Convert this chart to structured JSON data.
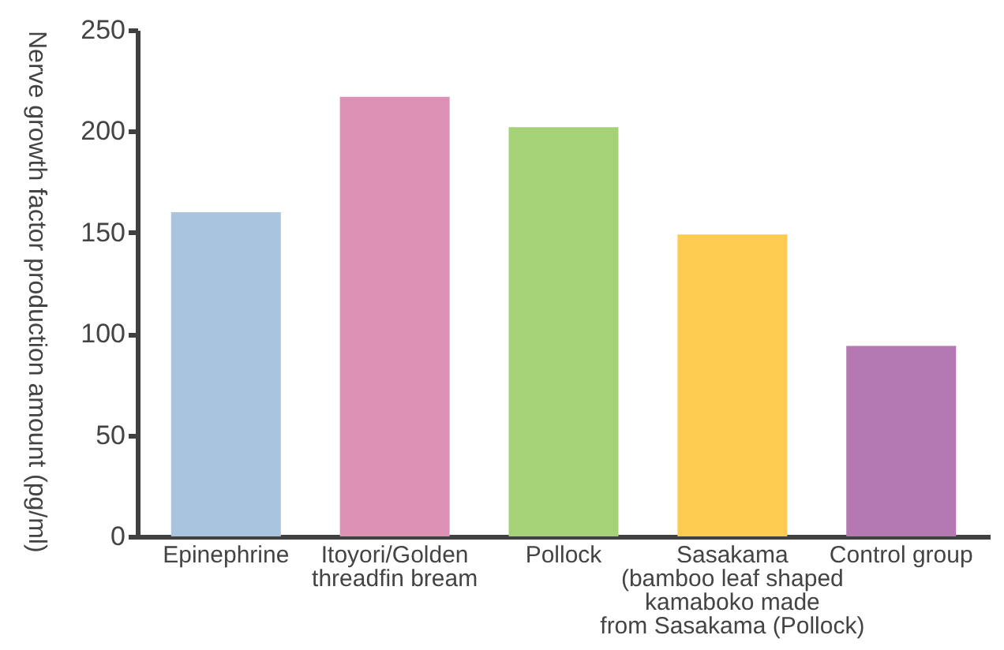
{
  "chart_data": {
    "type": "bar",
    "ylabel": "Nerve growth factor production amount (pg/ml)",
    "categories": [
      "Epinephrine",
      "Itoyori/Golden\nthreadfin bream",
      "Pollock",
      "Sasakama\n(bamboo leaf shaped\nkamaboko made\nfrom Sasakama (Pollock)",
      "Control group"
    ],
    "values": [
      160,
      217,
      202,
      149,
      94
    ],
    "colors": [
      "#a9c4de",
      "#dc91b5",
      "#a5d177",
      "#fccb50",
      "#b479b3"
    ],
    "ylim": [
      0,
      250
    ],
    "yticks": [
      0,
      50,
      100,
      150,
      200,
      250
    ],
    "grid": false,
    "legend": false
  }
}
